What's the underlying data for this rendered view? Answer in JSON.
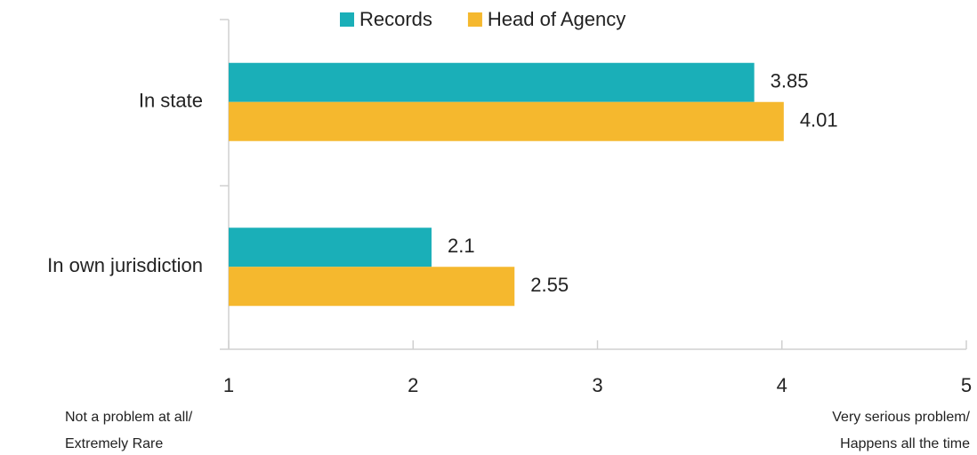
{
  "chart_data": {
    "type": "barh",
    "categories": [
      "In state",
      "In own jurisdiction"
    ],
    "series": [
      {
        "name": "Records",
        "color": "#1aafb8",
        "values": [
          3.85,
          2.1
        ]
      },
      {
        "name": "Head of Agency",
        "color": "#f5b82e",
        "values": [
          4.01,
          2.55
        ]
      }
    ],
    "xlim": [
      1,
      5
    ],
    "xticks": [
      1,
      2,
      3,
      4,
      5
    ],
    "legend": "top",
    "annotations": [
      {
        "lines": [
          "Not a problem at all/",
          "Extremely Rare"
        ]
      },
      {
        "lines": [
          "Very serious problem/",
          "Happens all the time"
        ]
      }
    ]
  }
}
